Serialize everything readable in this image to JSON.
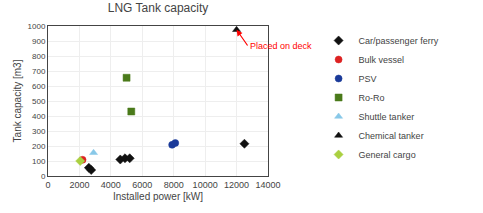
{
  "chart_data": {
    "type": "scatter",
    "title": "LNG Tank capacity",
    "xlabel": "Installed power [kW]",
    "ylabel": "Tank capacity [m3]",
    "xlim": [
      0,
      14000
    ],
    "ylim": [
      0,
      1000
    ],
    "xticks": [
      0,
      2000,
      4000,
      6000,
      8000,
      10000,
      12000,
      14000
    ],
    "yticks": [
      0,
      100,
      200,
      300,
      400,
      500,
      600,
      700,
      800,
      900,
      1000
    ],
    "grid": true,
    "legend": "right",
    "annotation": {
      "text": "Placed on deck",
      "xy": [
        12000,
        975
      ],
      "xytext": [
        12700,
        870
      ],
      "color": "red"
    },
    "series": [
      {
        "name": "Car/passenger ferry",
        "marker": "diamond",
        "color": "#111111",
        "x": [
          2600,
          2750,
          4600,
          4900,
          5200,
          12500
        ],
        "values": [
          55,
          40,
          110,
          118,
          118,
          215
        ]
      },
      {
        "name": "Bulk vessel",
        "marker": "circle",
        "color": "#dd2222",
        "x": [
          2200
        ],
        "values": [
          108
        ]
      },
      {
        "name": "PSV",
        "marker": "circle",
        "color": "#1a3a99",
        "x": [
          7900,
          8100
        ],
        "values": [
          208,
          220
        ]
      },
      {
        "name": "Ro-Ro",
        "marker": "square",
        "color": "#4a7a1a",
        "x": [
          5000,
          5300
        ],
        "values": [
          655,
          430
        ]
      },
      {
        "name": "Shuttle tanker",
        "marker": "triangle-up",
        "color": "#88c8e8",
        "x": [
          2900
        ],
        "values": [
          155
        ]
      },
      {
        "name": "Chemical tanker",
        "marker": "triangle-up",
        "color": "#111111",
        "x": [
          12000
        ],
        "values": [
          975
        ]
      },
      {
        "name": "General cargo",
        "marker": "diamond",
        "color": "#aad040",
        "x": [
          2050
        ],
        "values": [
          100
        ]
      }
    ]
  }
}
